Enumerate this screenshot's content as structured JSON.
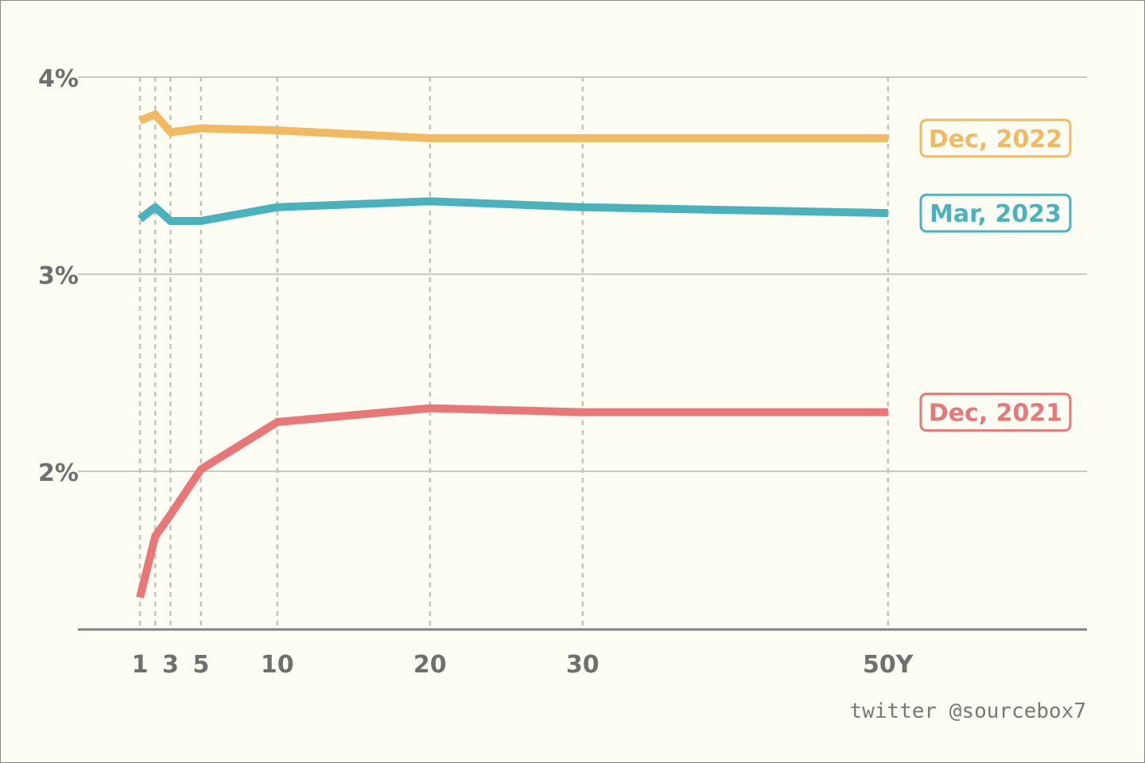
{
  "chart_data": {
    "type": "line",
    "x": [
      1,
      2,
      3,
      5,
      10,
      20,
      30,
      50
    ],
    "x_ticks": [
      {
        "value": 1,
        "label": "1"
      },
      {
        "value": 3,
        "label": "3"
      },
      {
        "value": 5,
        "label": "5"
      },
      {
        "value": 10,
        "label": "10"
      },
      {
        "value": 20,
        "label": "20"
      },
      {
        "value": 30,
        "label": "30"
      },
      {
        "value": 50,
        "label": "50Y"
      }
    ],
    "y_ticks": [
      {
        "value": 2,
        "label": "2%"
      },
      {
        "value": 3,
        "label": "3%"
      },
      {
        "value": 4,
        "label": "4%"
      }
    ],
    "xlim": [
      -3,
      63
    ],
    "ylim": [
      1.2,
      4.0
    ],
    "grid": {
      "horizontal": true,
      "vertical_dashed": true
    },
    "series": [
      {
        "name": "Dec, 2022",
        "color": "#f2b961",
        "values": [
          3.78,
          3.81,
          3.72,
          3.74,
          3.73,
          3.69,
          3.69,
          3.69
        ]
      },
      {
        "name": "Mar, 2023",
        "color": "#4ab2bc",
        "values": [
          3.28,
          3.34,
          3.27,
          3.27,
          3.34,
          3.37,
          3.34,
          3.31
        ]
      },
      {
        "name": "Dec, 2021",
        "color": "#e97777",
        "values": [
          1.36,
          1.67,
          1.78,
          2.01,
          2.25,
          2.32,
          2.3,
          2.3
        ]
      }
    ]
  },
  "credit": "twitter @sourcebox7"
}
